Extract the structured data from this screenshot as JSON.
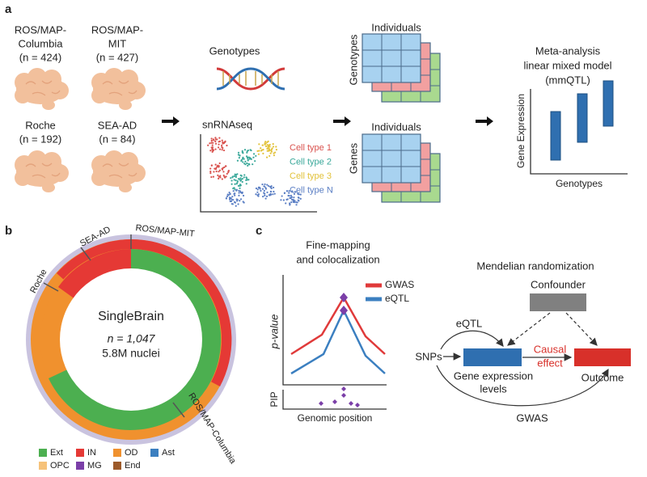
{
  "panel_a": {
    "label": "a",
    "cohorts": [
      {
        "name_lines": [
          "ROS/MAP-",
          "Columbia"
        ],
        "n": "(n = 424)"
      },
      {
        "name_lines": [
          "ROS/MAP-",
          "MIT"
        ],
        "n": "(n = 427)"
      },
      {
        "name_lines": [
          "Roche"
        ],
        "n": "(n = 192)"
      },
      {
        "name_lines": [
          "SEA-AD"
        ],
        "n": "(n = 84)"
      }
    ],
    "genotypes_title": "Genotypes",
    "snrnaseq_title": "snRNAseq",
    "cell_types": [
      {
        "name": "Cell type 1",
        "color": "#d9534f"
      },
      {
        "name": "Cell type 2",
        "color": "#3aa89a"
      },
      {
        "name": "Cell type 3",
        "color": "#e2c23a"
      },
      {
        "name": "Cell type N",
        "color": "#5b7fc4"
      }
    ],
    "matrix_top": {
      "columns": "Individuals",
      "rows": "Genotypes"
    },
    "matrix_bottom": {
      "columns": "Individuals",
      "rows": "Genes"
    },
    "meta_title": [
      "Meta-analysis",
      "linear mixed model",
      "(mmQTL)"
    ],
    "meta_y_label": "Gene Expression",
    "meta_x_label": "Genotypes"
  },
  "panel_b": {
    "label": "b",
    "cohort_labels": [
      "SEA-AD",
      "ROS/MAP-MIT",
      "Roche",
      "ROS/MAP-Columbia"
    ],
    "center": [
      "SingleBrain",
      "n = 1,047",
      "5.8M nuclei"
    ],
    "legend": [
      {
        "name": "Ext",
        "color": "#4caf50"
      },
      {
        "name": "IN",
        "color": "#e53935"
      },
      {
        "name": "OD",
        "color": "#f0912e"
      },
      {
        "name": "Ast",
        "color": "#3b7fc0"
      },
      {
        "name": "OPC",
        "color": "#f6c27a"
      },
      {
        "name": "MG",
        "color": "#7b3fa8"
      },
      {
        "name": "End",
        "color": "#9c5a2a"
      }
    ]
  },
  "panel_c": {
    "label": "c",
    "finemap_title": [
      "Fine-mapping",
      "and colocalization"
    ],
    "finemap_legend": [
      {
        "name": "GWAS",
        "color": "#e03a3a"
      },
      {
        "name": "eQTL",
        "color": "#3b7fc0"
      }
    ],
    "y_label": "p-value",
    "pip_label": "PIP",
    "x_label": "Genomic position",
    "mr_title": "Mendelian randomization",
    "confounder": "Confounder",
    "eqtl": "eQTL",
    "snps": "SNPs",
    "exposure": [
      "Gene expression",
      "levels"
    ],
    "causal": [
      "Causal",
      "effect"
    ],
    "outcome": "Outcome",
    "gwas": "GWAS"
  }
}
